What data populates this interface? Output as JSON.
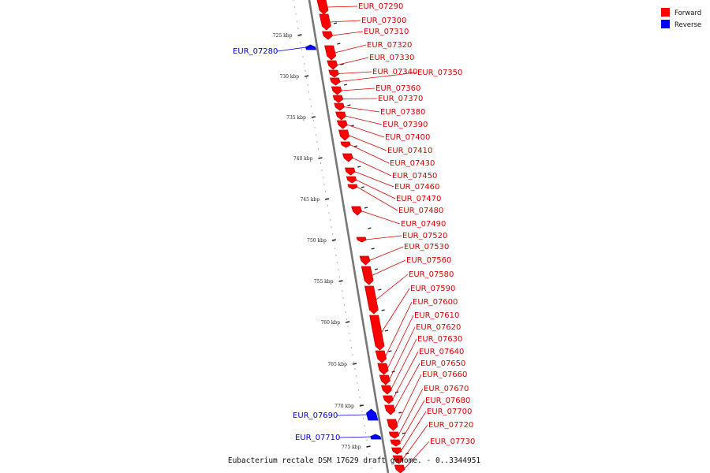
{
  "caption": "Eubacterium rectale DSM 17629 draft genome. - 0..3344951",
  "legend": [
    {
      "label": "Forward",
      "color": "#ff0000"
    },
    {
      "label": "Reverse",
      "color": "#0000ff"
    }
  ],
  "colors": {
    "forward": "#ff0000",
    "forward_dark": "#c40000",
    "reverse": "#0000ff",
    "reverse_dark": "#0000aa",
    "backbone": "#777777"
  },
  "scale": {
    "unit": "kbp",
    "ticks": [
      "725 kbp",
      "730 kbp",
      "735 kbp",
      "740 kbp",
      "745 kbp",
      "750 kbp",
      "755 kbp",
      "760 kbp",
      "765 kbp",
      "770 kbp",
      "775 kbp"
    ]
  },
  "genes": [
    {
      "id": "EUR_07280",
      "strand": "reverse"
    },
    {
      "id": "EUR_07290",
      "strand": "forward"
    },
    {
      "id": "EUR_07300",
      "strand": "forward"
    },
    {
      "id": "EUR_07310",
      "strand": "forward"
    },
    {
      "id": "EUR_07320",
      "strand": "forward"
    },
    {
      "id": "EUR_07330",
      "strand": "forward"
    },
    {
      "id": "EUR_07340",
      "strand": "forward"
    },
    {
      "id": "EUR_07350",
      "strand": "forward"
    },
    {
      "id": "EUR_07360",
      "strand": "forward"
    },
    {
      "id": "EUR_07370",
      "strand": "forward"
    },
    {
      "id": "EUR_07380",
      "strand": "forward"
    },
    {
      "id": "EUR_07390",
      "strand": "forward"
    },
    {
      "id": "EUR_07400",
      "strand": "forward"
    },
    {
      "id": "EUR_07410",
      "strand": "forward"
    },
    {
      "id": "EUR_07430",
      "strand": "forward"
    },
    {
      "id": "EUR_07450",
      "strand": "forward"
    },
    {
      "id": "EUR_07460",
      "strand": "forward"
    },
    {
      "id": "EUR_07470",
      "strand": "forward"
    },
    {
      "id": "EUR_07480",
      "strand": "forward"
    },
    {
      "id": "EUR_07490",
      "strand": "forward"
    },
    {
      "id": "EUR_07520",
      "strand": "forward"
    },
    {
      "id": "EUR_07530",
      "strand": "forward"
    },
    {
      "id": "EUR_07560",
      "strand": "forward"
    },
    {
      "id": "EUR_07580",
      "strand": "forward"
    },
    {
      "id": "EUR_07590",
      "strand": "forward"
    },
    {
      "id": "EUR_07600",
      "strand": "forward"
    },
    {
      "id": "EUR_07610",
      "strand": "forward"
    },
    {
      "id": "EUR_07620",
      "strand": "forward"
    },
    {
      "id": "EUR_07630",
      "strand": "forward"
    },
    {
      "id": "EUR_07640",
      "strand": "forward"
    },
    {
      "id": "EUR_07650",
      "strand": "forward"
    },
    {
      "id": "EUR_07660",
      "strand": "forward"
    },
    {
      "id": "EUR_07670",
      "strand": "forward"
    },
    {
      "id": "EUR_07680",
      "strand": "forward"
    },
    {
      "id": "EUR_07690",
      "strand": "reverse"
    },
    {
      "id": "EUR_07700",
      "strand": "forward"
    },
    {
      "id": "EUR_07710",
      "strand": "reverse"
    },
    {
      "id": "EUR_07720",
      "strand": "forward"
    },
    {
      "id": "EUR_07730",
      "strand": "forward"
    }
  ]
}
